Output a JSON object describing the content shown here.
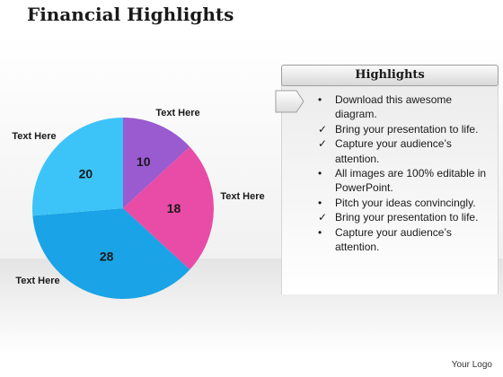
{
  "title": "Financial Highlights",
  "chart_data": {
    "type": "pie",
    "title": "",
    "slices": [
      {
        "label": "10",
        "value": 10,
        "color": "#9a5ad0",
        "callout": "Text Here"
      },
      {
        "label": "18",
        "value": 18,
        "color": "#e84ca6",
        "callout": "Text Here"
      },
      {
        "label": "28",
        "value": 28,
        "color": "#1aa3e6",
        "callout": "Text Here"
      },
      {
        "label": "20",
        "value": 20,
        "color": "#3cc4f8",
        "callout": "Text Here"
      }
    ],
    "start": "12 o'clock",
    "direction": "clockwise"
  },
  "highlights": {
    "heading": "Highlights",
    "items": [
      {
        "bullet": "•",
        "text": "Download this awesome diagram."
      },
      {
        "bullet": "✓",
        "text": "Bring your presentation to life."
      },
      {
        "bullet": "✓",
        "text": "Capture your audience’s attention."
      },
      {
        "bullet": "•",
        "text": "All images are 100% editable in PowerPoint."
      },
      {
        "bullet": "•",
        "text": "Pitch your ideas convincingly."
      },
      {
        "bullet": "✓",
        "text": "Bring your presentation to life."
      },
      {
        "bullet": "•",
        "text": "Capture your audience’s attention."
      }
    ]
  },
  "footer": {
    "logo_text": "Your Logo"
  }
}
